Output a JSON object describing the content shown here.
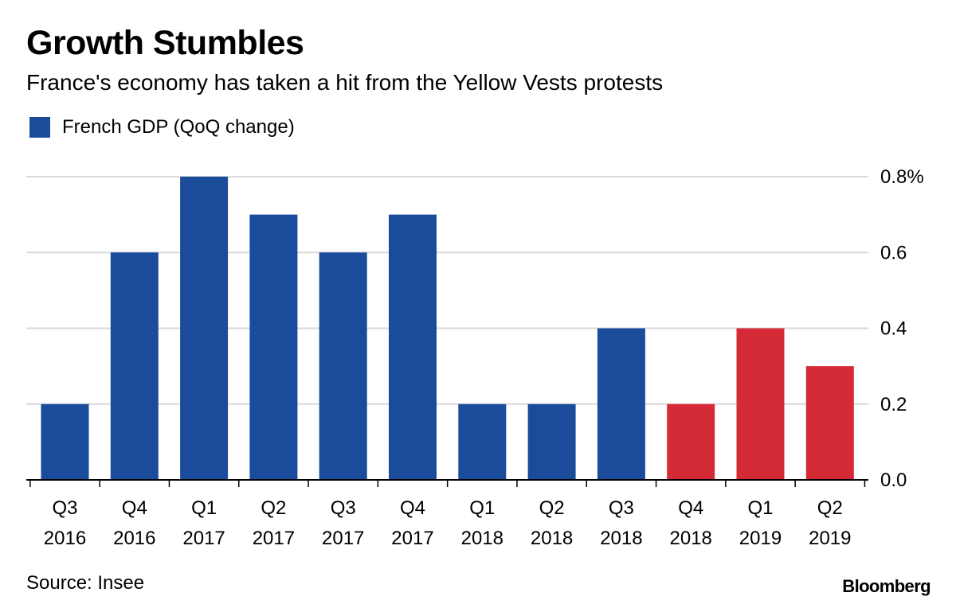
{
  "header": {
    "title": "Growth Stumbles",
    "subtitle": "France's economy has taken a hit from the Yellow Vests protests"
  },
  "legend": {
    "label": "French GDP (QoQ change)",
    "color": "#1b4b9b"
  },
  "colors": {
    "blue": "#1b4b9b",
    "red": "#d42a35",
    "grid": "#d9d9d9",
    "axis": "#000000"
  },
  "chart_data": {
    "type": "bar",
    "title": "Growth Stumbles",
    "subtitle": "France's economy has taken a hit from the Yellow Vests protests",
    "categories": [
      [
        "Q3",
        "2016"
      ],
      [
        "Q4",
        "2016"
      ],
      [
        "Q1",
        "2017"
      ],
      [
        "Q2",
        "2017"
      ],
      [
        "Q3",
        "2017"
      ],
      [
        "Q4",
        "2017"
      ],
      [
        "Q1",
        "2018"
      ],
      [
        "Q2",
        "2018"
      ],
      [
        "Q3",
        "2018"
      ],
      [
        "Q4",
        "2018"
      ],
      [
        "Q1",
        "2019"
      ],
      [
        "Q2",
        "2019"
      ]
    ],
    "series": [
      {
        "name": "French GDP (QoQ change)",
        "values": [
          0.2,
          0.6,
          0.8,
          0.7,
          0.6,
          0.7,
          0.2,
          0.2,
          0.4,
          0.2,
          0.4,
          0.3
        ],
        "colors": [
          "blue",
          "blue",
          "blue",
          "blue",
          "blue",
          "blue",
          "blue",
          "blue",
          "blue",
          "red",
          "red",
          "red"
        ]
      }
    ],
    "ylim": [
      0,
      0.8
    ],
    "yticks": [
      {
        "value": 0.8,
        "label": "0.8%"
      },
      {
        "value": 0.6,
        "label": "0.6"
      },
      {
        "value": 0.4,
        "label": "0.4"
      },
      {
        "value": 0.2,
        "label": "0.2"
      },
      {
        "value": 0.0,
        "label": "0.0"
      }
    ],
    "y_axis_side": "right",
    "grid": true,
    "legend_position": "top-left"
  },
  "footer": {
    "source": "Source: Insee",
    "logo": "Bloomberg"
  }
}
